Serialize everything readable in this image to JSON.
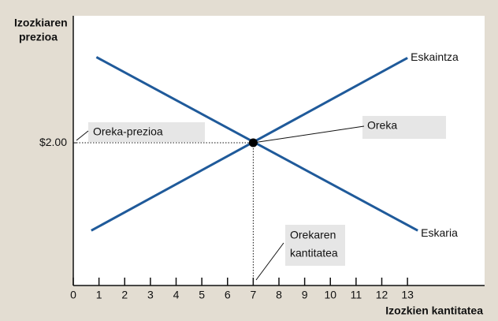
{
  "chart_data": {
    "type": "line",
    "y_label_lines": [
      "Izozkiaren",
      "prezioa"
    ],
    "x_label": "Izozkien kantitatea",
    "xlim": [
      0,
      16
    ],
    "ylim": [
      0,
      3.78
    ],
    "xticks": [
      0,
      1,
      2,
      3,
      4,
      5,
      6,
      7,
      8,
      9,
      10,
      11,
      12,
      13
    ],
    "yticks": [
      {
        "value": 2,
        "label": "$2.00"
      }
    ],
    "series": [
      {
        "name": "Eskaintza",
        "color": "#1f5a9a",
        "x": [
          0.7,
          13
        ],
        "values": [
          0.77,
          3.19
        ]
      },
      {
        "name": "Eskaria",
        "color": "#1f5a9a",
        "x": [
          0.9,
          13.4
        ],
        "values": [
          3.2,
          0.77
        ]
      }
    ],
    "equilibrium": {
      "x": 7,
      "y": 2,
      "label": "Oreka"
    },
    "price_annotation": "Oreka-prezioa",
    "quantity_annotation_lines": [
      "Orekaren",
      "kantitatea"
    ]
  }
}
